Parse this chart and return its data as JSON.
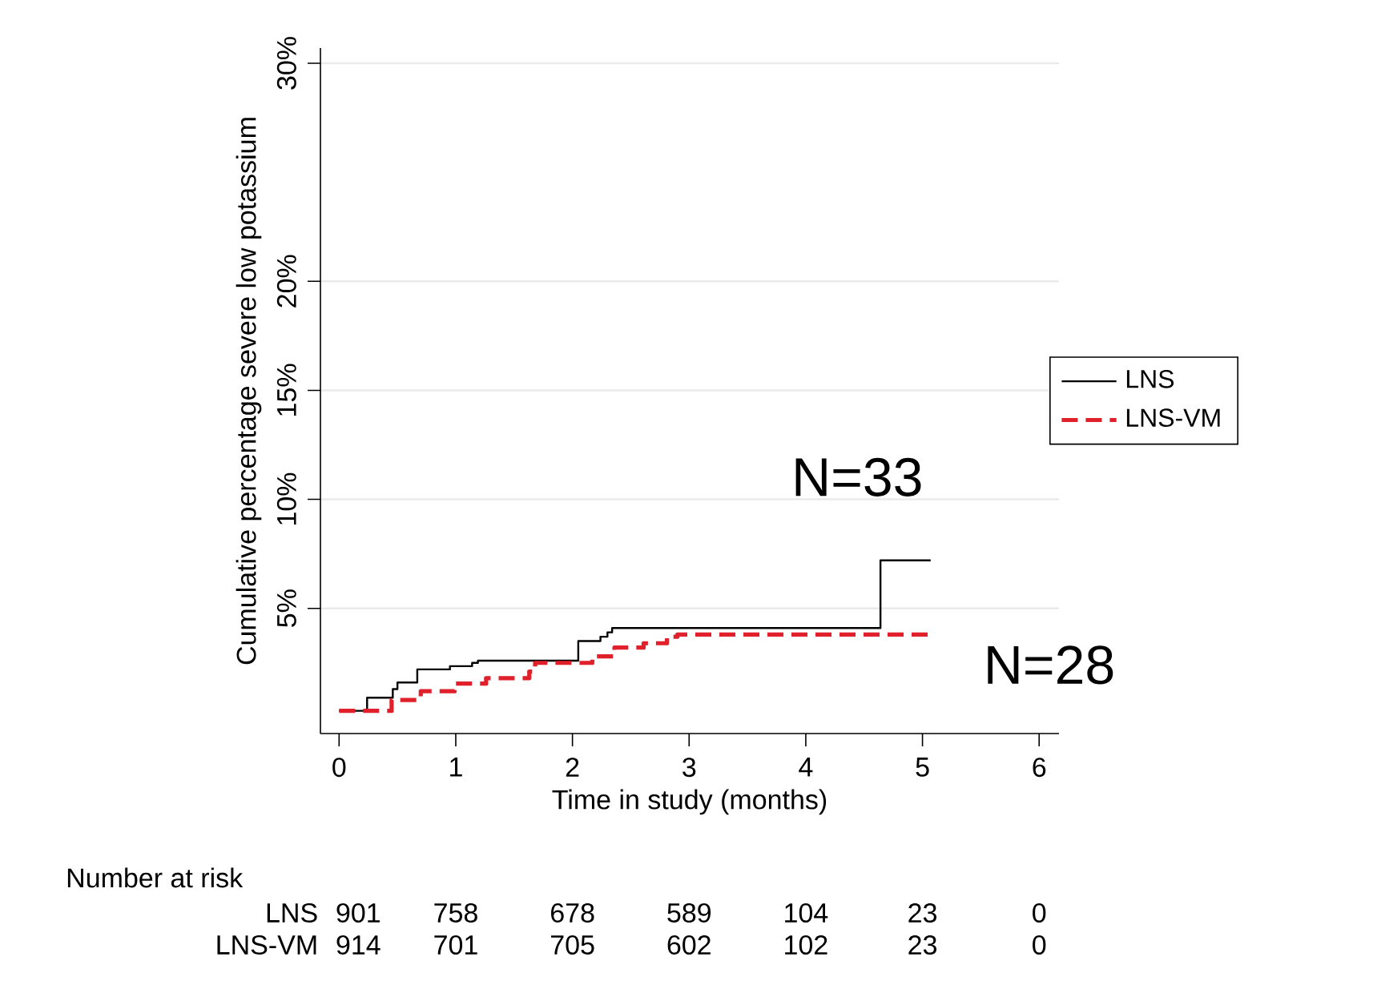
{
  "chart_data": {
    "type": "step",
    "xlabel": "Time in study (months)",
    "ylabel": "Cumulative percentage severe low potassium",
    "xlim": [
      -0.16,
      6.17
    ],
    "ylim": [
      -0.74,
      30.7
    ],
    "xticks": [
      0,
      1,
      2,
      3,
      4,
      5,
      6
    ],
    "yticks": [
      {
        "value": 5,
        "label": "5%"
      },
      {
        "value": 10,
        "label": "10%"
      },
      {
        "value": 15,
        "label": "15%"
      },
      {
        "value": 20,
        "label": "20%"
      },
      {
        "value": 30,
        "label": "30%"
      }
    ],
    "grid": "y",
    "legend": "right",
    "series": [
      {
        "name": "LNS",
        "color": "#000000",
        "line_style": "solid",
        "x": [
          0,
          0.24,
          0.46,
          0.5,
          0.67,
          0.95,
          1.14,
          1.19,
          2.05,
          2.24,
          2.3,
          2.34,
          4.64,
          5.07
        ],
        "values": [
          0.3,
          0.9,
          1.3,
          1.6,
          2.2,
          2.35,
          2.5,
          2.6,
          3.5,
          3.7,
          3.9,
          4.1,
          7.2,
          7.2
        ]
      },
      {
        "name": "LNS-VM",
        "color": "#e0202a",
        "line_style": "dashed",
        "x": [
          0,
          0.45,
          0.7,
          0.99,
          1.26,
          1.63,
          1.68,
          2.17,
          2.36,
          2.61,
          2.81,
          2.9,
          5.07
        ],
        "values": [
          0.3,
          0.8,
          1.2,
          1.55,
          1.8,
          2.1,
          2.5,
          2.8,
          3.2,
          3.4,
          3.7,
          3.8,
          3.8
        ]
      }
    ],
    "annotations": [
      "N=33",
      "N=28",
      "Number at risk",
      "LNS",
      "901",
      "758",
      "678",
      "589",
      "104",
      "23",
      "0",
      "LNS-VM",
      "914",
      "701",
      "705",
      "602",
      "102",
      "23",
      "0"
    ]
  }
}
